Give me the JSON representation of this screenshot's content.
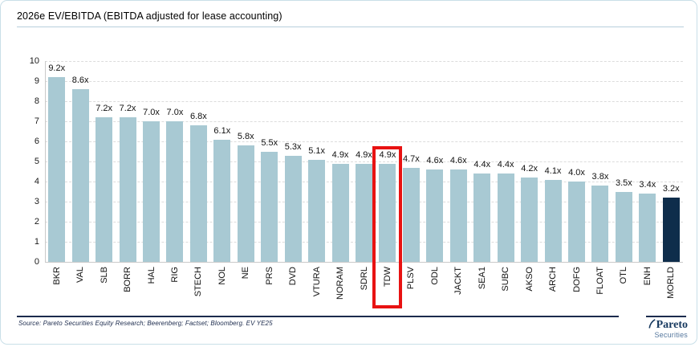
{
  "header": {
    "title": "2026e EV/EBITDA (EBITDA adjusted for lease accounting)"
  },
  "chart_data": {
    "type": "bar",
    "title": "2026e EV/EBITDA (EBITDA adjusted for lease accounting)",
    "categories": [
      "BKR",
      "VAL",
      "SLB",
      "BORR",
      "HAL",
      "RIG",
      "STECH",
      "NOL",
      "NE",
      "PRS",
      "DVD",
      "VTURA",
      "NORAM",
      "SDRL",
      "TDW",
      "PLSV",
      "ODL",
      "JACKT",
      "SEA1",
      "SUBC",
      "AKSO",
      "ARCH",
      "DOFG",
      "FLOAT",
      "OTL",
      "ENH",
      "MORLD"
    ],
    "values": [
      9.2,
      8.6,
      7.2,
      7.2,
      7.0,
      7.0,
      6.8,
      6.1,
      5.8,
      5.5,
      5.3,
      5.1,
      4.9,
      4.9,
      4.9,
      4.7,
      4.6,
      4.6,
      4.4,
      4.4,
      4.2,
      4.1,
      4.0,
      3.8,
      3.5,
      3.4,
      3.2
    ],
    "value_labels": [
      "9.2x",
      "8.6x",
      "7.2x",
      "7.2x",
      "7.0x",
      "7.0x",
      "6.8x",
      "6.1x",
      "5.8x",
      "5.5x",
      "5.3x",
      "5.1x",
      "4.9x",
      "4.9x",
      "4.9x",
      "4.7x",
      "4.6x",
      "4.6x",
      "4.4x",
      "4.4x",
      "4.2x",
      "4.1x",
      "4.0x",
      "3.8x",
      "3.5x",
      "3.4x",
      "3.2x"
    ],
    "xlabel": "",
    "ylabel": "",
    "ylim": [
      0,
      10
    ],
    "yticks": [
      0,
      1,
      2,
      3,
      4,
      5,
      6,
      7,
      8,
      9,
      10
    ],
    "grid": true,
    "legend": null,
    "highlighted_category": "TDW",
    "highlight_index": 14,
    "dark_bar_category": "MORLD",
    "dark_bar_index": 26,
    "colors": {
      "bar": "#a8c9d3",
      "dark_bar": "#0e2d4b",
      "highlight_border": "#e81212"
    }
  },
  "footer": {
    "source": "Source: Pareto Securities Equity Research; Beerenberg; Factset; Bloomberg. EV YE25",
    "logo": {
      "name": "Pareto",
      "sub": "Securities"
    }
  }
}
